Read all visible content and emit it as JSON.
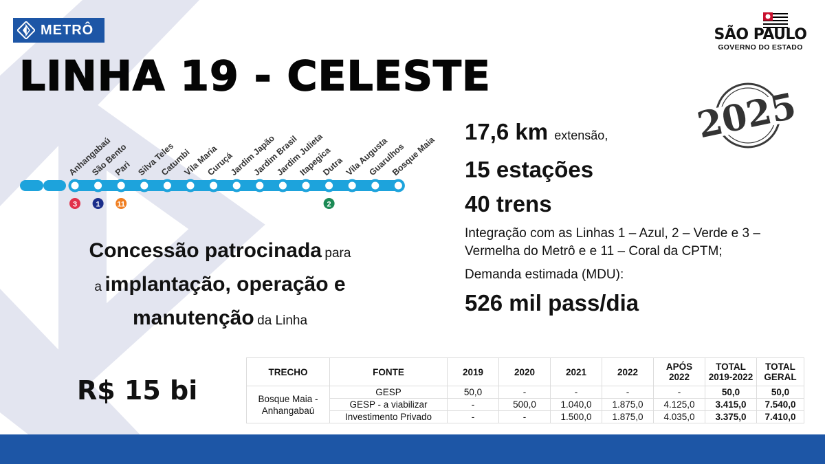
{
  "logo": {
    "text": "METRÔ"
  },
  "title": "LINHA 19 - CELESTE",
  "government": {
    "name": "SÃO PAULO",
    "subtitle": "GOVERNO DO ESTADO"
  },
  "stamp": {
    "year": "2025"
  },
  "line_color": "#1da3dc",
  "stations": [
    "Anhangabaú",
    "São Bento",
    "Pari",
    "Silva Teles",
    "Catumbi",
    "Vila Maria",
    "Curuçá",
    "Jardim Japão",
    "Jardim Brasil",
    "Jardim Julieta",
    "Itapegica",
    "Dutra",
    "Vila Augusta",
    "Guarulhos",
    "Bosque Maia"
  ],
  "connections": [
    {
      "station": "Anhangabaú",
      "line": "3",
      "color": "#e1314b"
    },
    {
      "station": "São Bento",
      "line": "1",
      "color": "#1a2d8a"
    },
    {
      "station": "Pari",
      "line": "11",
      "color": "#f07f22"
    },
    {
      "station": "Dutra",
      "line": "2",
      "color": "#1b8a55"
    }
  ],
  "stats": {
    "extension_value": "17,6 km",
    "extension_label": "extensão,",
    "stations": "15 estações",
    "trains": "40 trens",
    "integration": "Integração com as Linhas 1 – Azul, 2 – Verde e 3 – Vermelha do Metrô e e 11 – Coral da CPTM;",
    "demand_label": "Demanda estimada (MDU):",
    "demand_value": "526 mil pass/dia"
  },
  "concession": {
    "p1": "Concessão patrocinada",
    "p2": "para",
    "p3": "a",
    "p4": "implantação, operação e",
    "p5": "manutenção",
    "p6": "da Linha"
  },
  "investment": "R$ 15 bi",
  "table": {
    "headers": [
      "TRECHO",
      "FONTE",
      "2019",
      "2020",
      "2021",
      "2022",
      "APÓS 2022",
      "TOTAL 2019-2022",
      "TOTAL GERAL"
    ],
    "trecho": "Bosque Maia - Anhangabaú",
    "rows": [
      {
        "fonte": "GESP",
        "y2019": "50,0",
        "y2020": "-",
        "y2021": "-",
        "y2022": "-",
        "apos": "-",
        "total": "50,0",
        "geral": "50,0"
      },
      {
        "fonte": "GESP - a viabilizar",
        "y2019": "-",
        "y2020": "500,0",
        "y2021": "1.040,0",
        "y2022": "1.875,0",
        "apos": "4.125,0",
        "total": "3.415,0",
        "geral": "7.540,0"
      },
      {
        "fonte": "Investimento Privado",
        "y2019": "-",
        "y2020": "-",
        "y2021": "1.500,0",
        "y2022": "1.875,0",
        "apos": "4.035,0",
        "total": "3.375,0",
        "geral": "7.410,0"
      }
    ]
  },
  "colors": {
    "brand_blue": "#1d56a6",
    "line_celeste": "#1da3dc"
  }
}
